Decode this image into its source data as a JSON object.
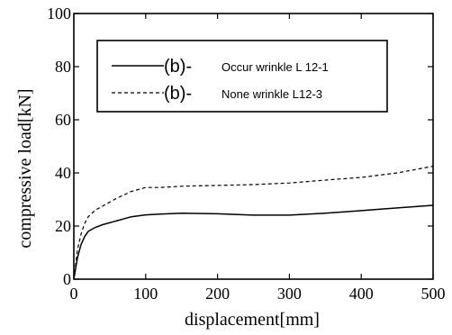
{
  "chart_data": {
    "type": "line",
    "xlabel": "displacement[mm]",
    "ylabel": "compressive load[kN]",
    "xlim": [
      0,
      500
    ],
    "ylim": [
      0,
      100
    ],
    "xticks": [
      0,
      100,
      200,
      300,
      400,
      500
    ],
    "yticks": [
      0,
      20,
      40,
      60,
      80,
      100
    ],
    "grid": false,
    "legend_position": "top-center",
    "series": [
      {
        "name": "Occur wrinkle L 12-1",
        "legend_prefix": "(b)-",
        "line_style": "solid",
        "color": "#000000",
        "x": [
          0,
          5,
          10,
          15,
          20,
          30,
          40,
          60,
          80,
          100,
          120,
          150,
          200,
          250,
          300,
          350,
          400,
          450,
          500
        ],
        "y": [
          0,
          8,
          13,
          16,
          18,
          19.5,
          20.5,
          22,
          23.5,
          24.2,
          24.5,
          24.8,
          24.6,
          24.1,
          24.1,
          24.8,
          25.8,
          26.8,
          27.8
        ]
      },
      {
        "name": "None wrinkle L12-3",
        "legend_prefix": "(b)-",
        "line_style": "dashed",
        "color": "#000000",
        "x": [
          0,
          5,
          10,
          15,
          20,
          30,
          40,
          60,
          80,
          100,
          120,
          150,
          200,
          250,
          300,
          350,
          400,
          450,
          500
        ],
        "y": [
          0,
          11,
          17,
          21,
          23.5,
          26,
          27.5,
          30.5,
          33,
          34.5,
          34.5,
          35,
          35.3,
          35.6,
          36.2,
          37.3,
          38.3,
          40,
          42.5
        ]
      }
    ]
  }
}
